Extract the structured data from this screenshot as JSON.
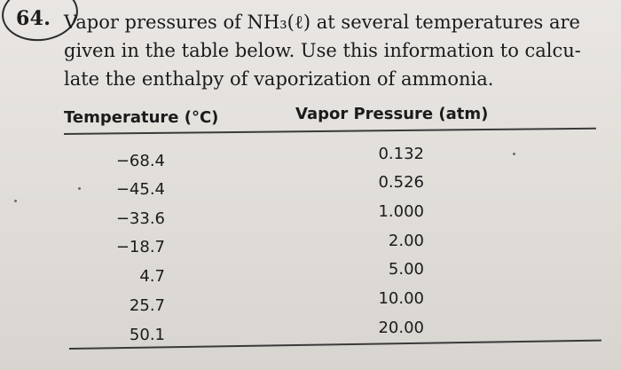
{
  "problem": {
    "number": "64.",
    "text": "Vapor pressures of NH₃(ℓ) at several temperatures are\ngiven in the table below. Use this information to calcu-\nlate the enthalpy of vaporization of ammonia."
  },
  "table": {
    "headers": {
      "temperature": "Temperature (°C)",
      "vapor_pressure": "Vapor Pressure (atm)"
    },
    "rows": [
      {
        "temperature": "−68.4",
        "vapor_pressure": "0.132"
      },
      {
        "temperature": "−45.4",
        "vapor_pressure": "0.526"
      },
      {
        "temperature": "−33.6",
        "vapor_pressure": "1.000"
      },
      {
        "temperature": "−18.7",
        "vapor_pressure": "2.00"
      },
      {
        "temperature": "4.7",
        "vapor_pressure": "5.00"
      },
      {
        "temperature": "25.7",
        "vapor_pressure": "10.00"
      },
      {
        "temperature": "50.1",
        "vapor_pressure": "20.00"
      }
    ]
  }
}
